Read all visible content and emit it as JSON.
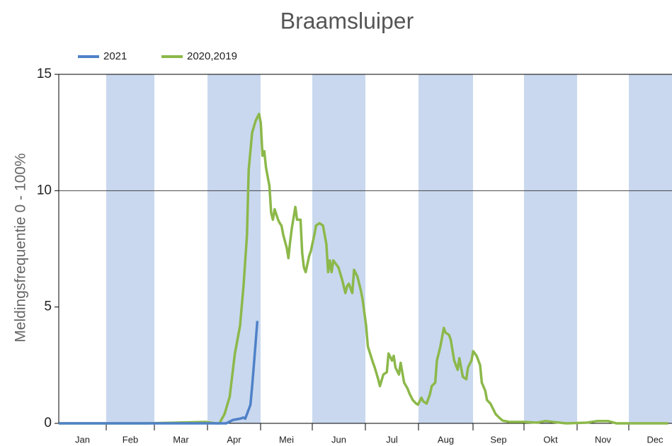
{
  "chart_data": {
    "type": "line",
    "title": "Braamsluiper",
    "y_label": "Meldingsfrequentie 0 - 100%",
    "categories": [
      "Jan",
      "Feb",
      "Mar",
      "Apr",
      "Mei",
      "Jun",
      "Jul",
      "Aug",
      "Sep",
      "Okt",
      "Nov",
      "Dec"
    ],
    "xlim": [
      0,
      365
    ],
    "ylim": [
      0,
      15
    ],
    "yticks": [
      0,
      5,
      10,
      15
    ],
    "gridlines": [
      10
    ],
    "band_color": "#c9d8ef",
    "series": [
      {
        "name": "2021",
        "color": "#4f81c8",
        "x": [
          0,
          50,
          97,
          101,
          105,
          107,
          108,
          109,
          111,
          112,
          113,
          115
        ],
        "values": [
          0,
          0,
          0,
          0.15,
          0.2,
          0.25,
          0.2,
          0.4,
          0.8,
          1.6,
          2.5,
          4.4
        ]
      },
      {
        "name": "2020,2019",
        "color": "#8cb84a",
        "x": [
          0,
          50,
          85,
          91,
          93,
          96,
          99,
          102,
          105,
          107,
          109,
          110,
          112,
          114,
          116,
          117,
          118,
          119,
          120,
          122,
          123,
          124,
          125,
          127,
          128,
          129,
          130,
          132,
          133,
          134,
          135,
          137,
          138,
          140,
          141,
          142,
          143,
          145,
          146,
          148,
          149,
          151,
          153,
          155,
          156,
          157,
          158,
          159,
          161,
          162,
          164,
          166,
          167,
          168,
          170,
          171,
          173,
          175,
          176,
          178,
          179,
          182,
          183,
          185,
          186,
          188,
          190,
          191,
          193,
          194,
          195,
          197,
          198,
          200,
          202,
          203,
          205,
          207,
          208,
          210,
          211,
          213,
          215,
          216,
          218,
          219,
          221,
          223,
          224,
          226,
          227,
          229,
          231,
          232,
          234,
          236,
          237,
          239,
          240,
          242,
          244,
          245,
          247,
          248,
          250,
          252,
          253,
          255,
          257,
          261,
          269,
          277,
          282,
          286,
          294,
          306,
          312,
          318,
          323,
          335,
          353
        ],
        "values": [
          0,
          0,
          0.06,
          0,
          0,
          0.4,
          1.15,
          3,
          4.2,
          5.9,
          8.1,
          10.9,
          12.5,
          13,
          13.3,
          12.9,
          11.5,
          11.7,
          11,
          10.2,
          9.05,
          8.75,
          9.2,
          8.75,
          8.6,
          8.5,
          8.1,
          7.55,
          7.1,
          7.8,
          8.4,
          9.3,
          8.75,
          8.75,
          7.3,
          6.7,
          6.5,
          7.2,
          7.4,
          8.1,
          8.5,
          8.6,
          8.5,
          7.7,
          6.5,
          7,
          6.5,
          7,
          6.8,
          6.7,
          6.2,
          5.6,
          5.9,
          6,
          5.6,
          6.6,
          6.3,
          5.7,
          5.3,
          4.2,
          3.3,
          2.6,
          2.4,
          1.9,
          1.6,
          2.1,
          2.2,
          3,
          2.7,
          2.9,
          2.4,
          2.1,
          2.6,
          1.75,
          1.5,
          1.3,
          1,
          0.85,
          0.8,
          1.1,
          0.95,
          0.85,
          1.25,
          1.6,
          1.75,
          2.7,
          3.3,
          4.1,
          3.9,
          3.8,
          3.6,
          2.7,
          2.3,
          2.8,
          2,
          1.9,
          2.4,
          2.7,
          3.1,
          2.9,
          2.5,
          1.75,
          1.4,
          1,
          0.85,
          0.55,
          0.4,
          0.25,
          0.12,
          0.06,
          0.06,
          0.03,
          0.1,
          0.06,
          0,
          0.03,
          0.1,
          0.1,
          0,
          0,
          0
        ]
      }
    ]
  }
}
